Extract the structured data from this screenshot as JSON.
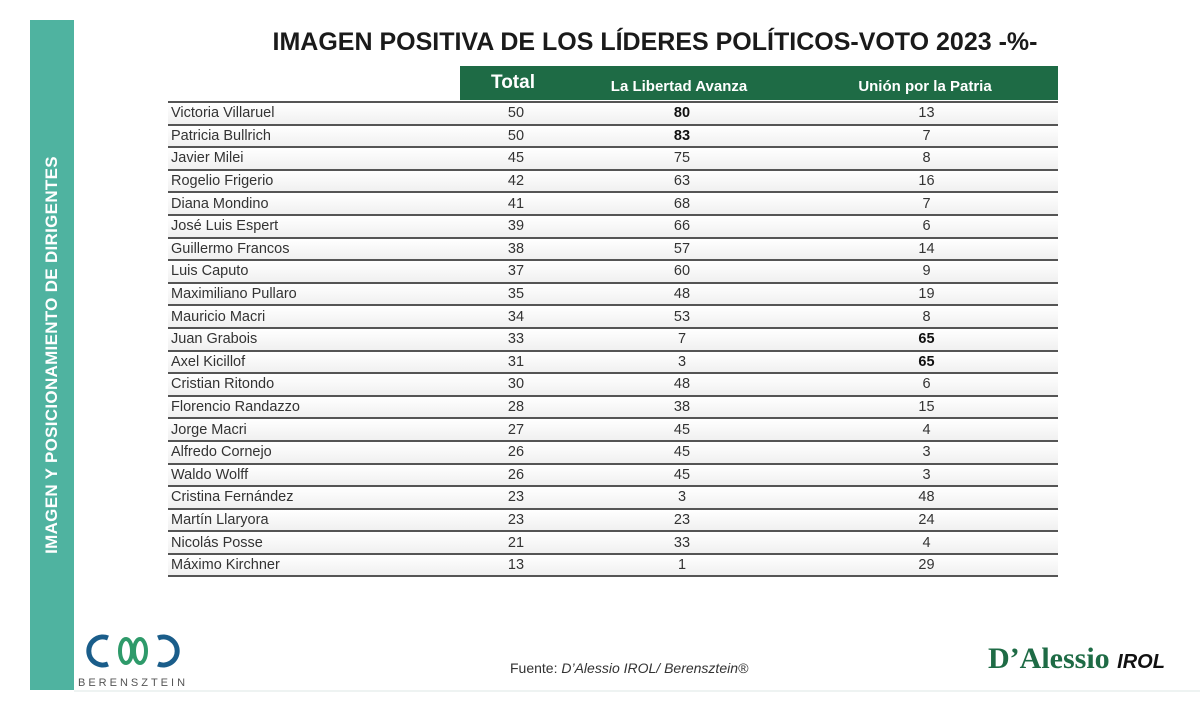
{
  "sidebar_label": "IMAGEN Y POSICIONAMIENTO DE DIRIGENTES",
  "title": "IMAGEN POSITIVA DE LOS LÍDERES POLÍTICOS-VOTO 2023 -%-",
  "columns": [
    "Total",
    "La Libertad Avanza",
    "Unión por la Patria"
  ],
  "rows": [
    {
      "name": "Victoria Villaruel",
      "total": "50",
      "lla": "80",
      "uxp": "13",
      "bold": "lla"
    },
    {
      "name": "Patricia Bullrich",
      "total": "50",
      "lla": "83",
      "uxp": "7",
      "bold": "lla"
    },
    {
      "name": "Javier Milei",
      "total": "45",
      "lla": "75",
      "uxp": "8"
    },
    {
      "name": "Rogelio Frigerio",
      "total": "42",
      "lla": "63",
      "uxp": "16"
    },
    {
      "name": "Diana Mondino",
      "total": "41",
      "lla": "68",
      "uxp": "7"
    },
    {
      "name": "José Luis Espert",
      "total": "39",
      "lla": "66",
      "uxp": "6"
    },
    {
      "name": "Guillermo Francos",
      "total": "38",
      "lla": "57",
      "uxp": "14"
    },
    {
      "name": "Luis Caputo",
      "total": "37",
      "lla": "60",
      "uxp": "9"
    },
    {
      "name": "Maximiliano Pullaro",
      "total": "35",
      "lla": "48",
      "uxp": "19"
    },
    {
      "name": "Mauricio Macri",
      "total": "34",
      "lla": "53",
      "uxp": "8"
    },
    {
      "name": "Juan Grabois",
      "total": "33",
      "lla": "7",
      "uxp": "65",
      "bold": "uxp"
    },
    {
      "name": "Axel Kicillof",
      "total": "31",
      "lla": "3",
      "uxp": "65",
      "bold": "uxp"
    },
    {
      "name": "Cristian Ritondo",
      "total": "30",
      "lla": "48",
      "uxp": "6"
    },
    {
      "name": "Florencio Randazzo",
      "total": "28",
      "lla": "38",
      "uxp": "15"
    },
    {
      "name": "Jorge Macri",
      "total": "27",
      "lla": "45",
      "uxp": "4"
    },
    {
      "name": "Alfredo Cornejo",
      "total": "26",
      "lla": "45",
      "uxp": "3"
    },
    {
      "name": "Waldo Wolff",
      "total": "26",
      "lla": "45",
      "uxp": "3"
    },
    {
      "name": "Cristina Fernández",
      "total": "23",
      "lla": "3",
      "uxp": "48"
    },
    {
      "name": "Martín Llaryora",
      "total": "23",
      "lla": "23",
      "uxp": "24"
    },
    {
      "name": "Nicolás Posse",
      "total": "21",
      "lla": "33",
      "uxp": "4"
    },
    {
      "name": "Máximo Kirchner",
      "total": "13",
      "lla": "1",
      "uxp": "29"
    }
  ],
  "source_prefix": "Fuente: ",
  "source": "D’Alessio IROL/ Berensztein®",
  "logo_left": "BERENSZTEIN",
  "logo_right_main": "D’Alessio",
  "logo_right_sub": "IROL"
}
